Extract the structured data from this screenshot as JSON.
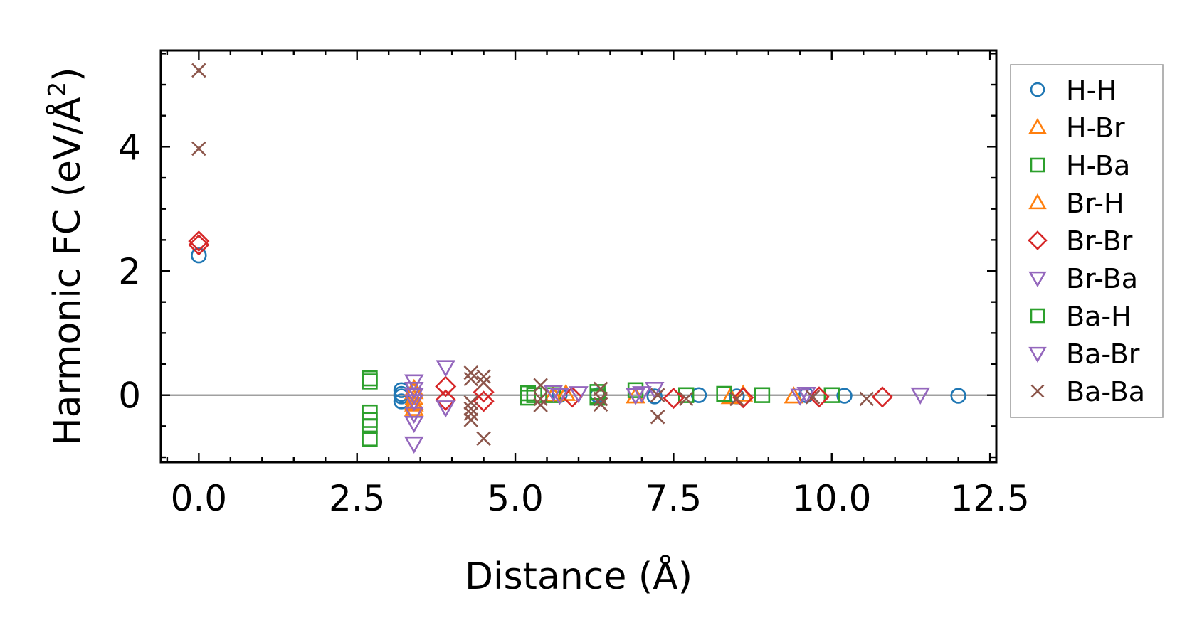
{
  "chart_data": {
    "type": "scatter",
    "xlabel": "Distance (Å)",
    "ylabel": "Harmonic FC (eV/Å²)",
    "ylabel_main": "Harmonic FC (eV/Å",
    "ylabel_sup": "2",
    "ylabel_close": ")",
    "xlim": [
      -0.6,
      12.6
    ],
    "ylim": [
      -1.08,
      5.55
    ],
    "xticks": [
      0.0,
      2.5,
      5.0,
      7.5,
      10.0,
      12.5
    ],
    "xtick_labels": [
      "0.0",
      "2.5",
      "5.0",
      "7.5",
      "10.0",
      "12.5"
    ],
    "yticks": [
      0,
      2,
      4
    ],
    "ytick_labels": [
      "0",
      "2",
      "4"
    ],
    "zero_line": true,
    "grid": false,
    "legend_position": "outside-right",
    "series": [
      {
        "name": "H-H",
        "marker": "circle",
        "color": "#1f77b4",
        "points": [
          [
            0.0,
            2.25
          ],
          [
            3.2,
            0.08
          ],
          [
            3.2,
            0.02
          ],
          [
            3.2,
            -0.02
          ],
          [
            3.2,
            -0.1
          ],
          [
            3.4,
            0.0
          ],
          [
            5.7,
            0.0
          ],
          [
            6.3,
            0.0
          ],
          [
            7.2,
            -0.02
          ],
          [
            7.9,
            0.0
          ],
          [
            8.5,
            -0.02
          ],
          [
            9.6,
            0.0
          ],
          [
            10.2,
            -0.01
          ],
          [
            12.0,
            -0.01
          ]
        ]
      },
      {
        "name": "H-Br",
        "marker": "triangle-up",
        "color": "#ff7f0e",
        "points": [
          [
            3.4,
            0.05
          ],
          [
            3.4,
            -0.05
          ],
          [
            3.4,
            -0.12
          ],
          [
            3.4,
            -0.22
          ],
          [
            5.6,
            0.0
          ],
          [
            6.9,
            -0.02
          ],
          [
            8.4,
            -0.03
          ],
          [
            9.4,
            -0.02
          ]
        ]
      },
      {
        "name": "H-Ba",
        "marker": "square",
        "color": "#2ca02c",
        "points": [
          [
            2.7,
            0.27
          ],
          [
            2.7,
            0.22
          ],
          [
            2.7,
            -0.28
          ],
          [
            2.7,
            -0.4
          ],
          [
            2.7,
            -0.5
          ],
          [
            2.7,
            -0.7
          ],
          [
            5.2,
            0.03
          ],
          [
            5.2,
            -0.04
          ],
          [
            5.6,
            0.0
          ],
          [
            6.3,
            0.05
          ],
          [
            6.3,
            -0.04
          ],
          [
            6.9,
            0.08
          ],
          [
            7.7,
            0.0
          ],
          [
            8.3,
            0.02
          ],
          [
            8.9,
            0.0
          ],
          [
            10.0,
            0.0
          ]
        ]
      },
      {
        "name": "Br-H",
        "marker": "triangle-up",
        "color": "#ff7f0e",
        "points": [
          [
            3.4,
            0.1
          ],
          [
            3.4,
            -0.15
          ],
          [
            5.8,
            0.02
          ],
          [
            8.6,
            0.01
          ]
        ]
      },
      {
        "name": "Br-Br",
        "marker": "diamond",
        "color": "#d62728",
        "points": [
          [
            0.0,
            2.48
          ],
          [
            0.0,
            2.42
          ],
          [
            3.9,
            0.14
          ],
          [
            3.9,
            -0.08
          ],
          [
            4.5,
            0.05
          ],
          [
            4.5,
            -0.1
          ],
          [
            5.9,
            -0.03
          ],
          [
            7.5,
            -0.05
          ],
          [
            8.6,
            -0.04
          ],
          [
            9.8,
            -0.03
          ],
          [
            10.8,
            -0.03
          ]
        ]
      },
      {
        "name": "Br-Ba",
        "marker": "triangle-down",
        "color": "#9467bd",
        "points": [
          [
            3.4,
            0.22
          ],
          [
            3.4,
            0.1
          ],
          [
            3.4,
            -0.1
          ],
          [
            3.4,
            -0.3
          ],
          [
            3.4,
            -0.45
          ],
          [
            3.4,
            -0.78
          ],
          [
            3.9,
            0.45
          ],
          [
            3.9,
            -0.2
          ],
          [
            5.6,
            0.05
          ],
          [
            6.0,
            0.03
          ],
          [
            6.9,
            0.0
          ],
          [
            7.2,
            0.1
          ],
          [
            9.6,
            0.02
          ],
          [
            11.4,
            0.01
          ]
        ]
      },
      {
        "name": "Ba-H",
        "marker": "square",
        "color": "#2ca02c",
        "points": [
          [
            5.3,
            0.0
          ],
          [
            6.3,
            -0.02
          ]
        ]
      },
      {
        "name": "Ba-Br",
        "marker": "triangle-down",
        "color": "#9467bd",
        "points": [
          [
            3.4,
            0.0
          ],
          [
            5.7,
            0.0
          ],
          [
            7.0,
            0.03
          ],
          [
            9.5,
            -0.01
          ]
        ]
      },
      {
        "name": "Ba-Ba",
        "marker": "x",
        "color": "#8c564b",
        "points": [
          [
            0.0,
            5.23
          ],
          [
            0.0,
            3.97
          ],
          [
            4.3,
            0.36
          ],
          [
            4.3,
            0.26
          ],
          [
            4.3,
            -0.12
          ],
          [
            4.3,
            -0.22
          ],
          [
            4.3,
            -0.3
          ],
          [
            4.3,
            -0.4
          ],
          [
            4.5,
            0.3
          ],
          [
            4.5,
            0.2
          ],
          [
            4.5,
            -0.7
          ],
          [
            5.4,
            0.16
          ],
          [
            5.4,
            -0.06
          ],
          [
            5.4,
            -0.16
          ],
          [
            6.35,
            0.1
          ],
          [
            6.35,
            -0.06
          ],
          [
            6.35,
            -0.15
          ],
          [
            7.25,
            0.0
          ],
          [
            7.25,
            -0.35
          ],
          [
            7.7,
            -0.06
          ],
          [
            8.5,
            -0.06
          ],
          [
            9.7,
            -0.03
          ],
          [
            10.55,
            -0.06
          ]
        ]
      }
    ]
  }
}
